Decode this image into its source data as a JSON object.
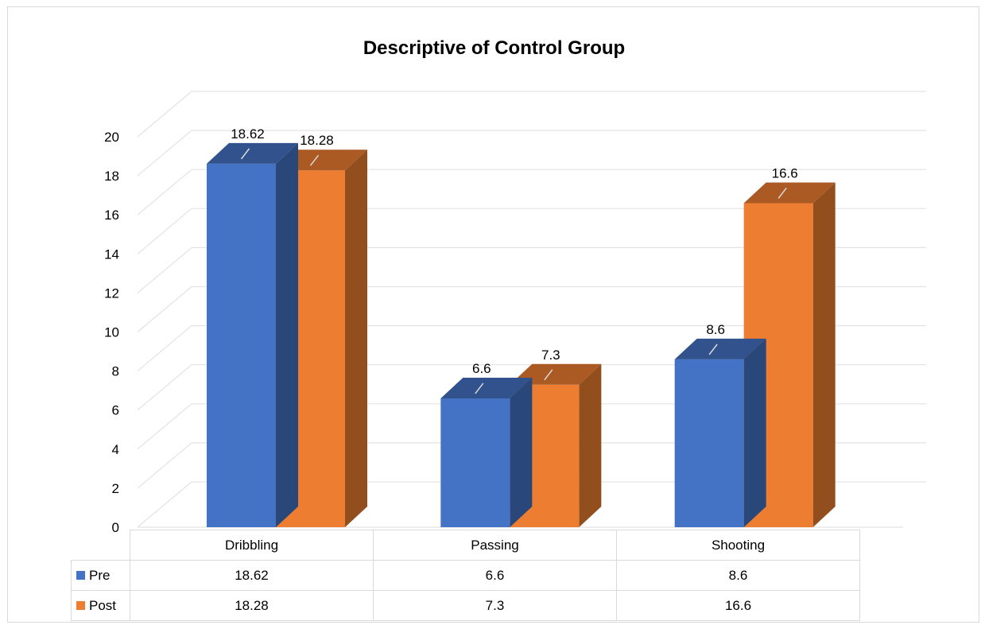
{
  "chart_data": {
    "type": "bar",
    "title": "Descriptive of Control Group",
    "categories": [
      "Dribbling",
      "Passing",
      "Shooting"
    ],
    "series": [
      {
        "name": "Pre",
        "values": [
          18.62,
          6.6,
          8.6
        ],
        "color": "#4472c4"
      },
      {
        "name": "Post",
        "values": [
          18.28,
          7.3,
          16.6
        ],
        "color": "#ed7d31"
      }
    ],
    "data_labels": [
      [
        "18.62",
        "6.6",
        "8.6"
      ],
      [
        "18.28",
        "7.3",
        "16.6"
      ]
    ],
    "ylim": [
      0,
      20
    ],
    "yticks": [
      "0",
      "2",
      "4",
      "6",
      "8",
      "10",
      "12",
      "14",
      "16",
      "18",
      "20"
    ],
    "grid": true,
    "style": "3d-clustered-column",
    "legend": "data-table-below"
  },
  "table": {
    "categories": [
      "Dribbling",
      "Passing",
      "Shooting"
    ],
    "rows": [
      {
        "label": "Pre",
        "color": "#4472c4",
        "values": [
          "18.62",
          "6.6",
          "8.6"
        ]
      },
      {
        "label": "Post",
        "color": "#ed7d31",
        "values": [
          "18.28",
          "7.3",
          "16.6"
        ]
      }
    ]
  }
}
